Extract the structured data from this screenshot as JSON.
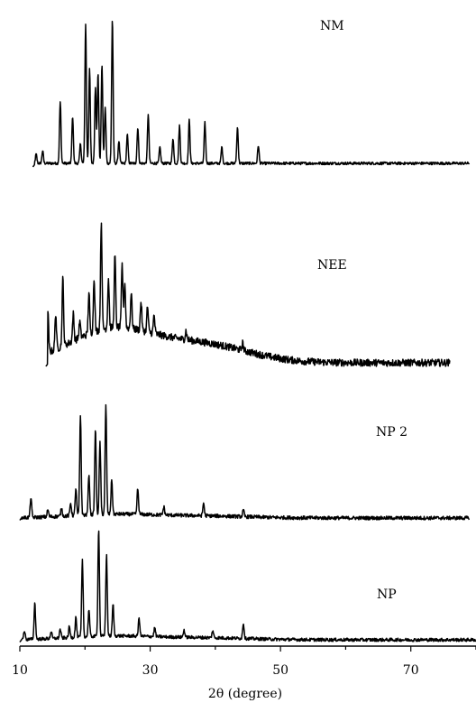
{
  "chart_data": {
    "type": "line",
    "title": "",
    "xlabel": "2θ (degree)",
    "ylabel": "",
    "xlim": [
      10,
      80
    ],
    "x_ticks": [
      10,
      30,
      50,
      70
    ],
    "grid": false,
    "legend": "none",
    "stacked_offset": true,
    "series": [
      {
        "name": "NM",
        "x_range": [
          12,
          79
        ],
        "baseline": 8,
        "noise": 1.5,
        "hump": 0,
        "peaks": [
          [
            12.5,
            10
          ],
          [
            13.5,
            14
          ],
          [
            16.2,
            68
          ],
          [
            18.1,
            52
          ],
          [
            19.3,
            22
          ],
          [
            20.1,
            155
          ],
          [
            20.7,
            105
          ],
          [
            21.6,
            85
          ],
          [
            22.0,
            100
          ],
          [
            22.6,
            110
          ],
          [
            23.1,
            62
          ],
          [
            24.2,
            160
          ],
          [
            25.2,
            25
          ],
          [
            26.5,
            32
          ],
          [
            28.1,
            40
          ],
          [
            29.7,
            55
          ],
          [
            31.5,
            18
          ],
          [
            33.5,
            28
          ],
          [
            34.5,
            42
          ],
          [
            36.0,
            48
          ],
          [
            38.4,
            45
          ],
          [
            41.0,
            18
          ],
          [
            43.4,
            40
          ],
          [
            46.6,
            20
          ]
        ]
      },
      {
        "name": "NEE",
        "x_range": [
          14,
          76
        ],
        "baseline": 8,
        "noise": 4,
        "hump": 36,
        "peaks": [
          [
            14.3,
            45
          ],
          [
            15.5,
            40
          ],
          [
            16.6,
            75
          ],
          [
            18.2,
            30
          ],
          [
            19.2,
            18
          ],
          [
            20.6,
            45
          ],
          [
            21.4,
            60
          ],
          [
            22.5,
            120
          ],
          [
            23.6,
            55
          ],
          [
            24.6,
            80
          ],
          [
            25.7,
            70
          ],
          [
            26.1,
            50
          ],
          [
            27.1,
            40
          ],
          [
            28.6,
            32
          ],
          [
            29.6,
            28
          ],
          [
            30.6,
            20
          ],
          [
            35.5,
            10
          ],
          [
            44.2,
            8
          ]
        ]
      },
      {
        "name": "NP 2",
        "x_range": [
          10,
          79
        ],
        "baseline": 5,
        "noise": 2,
        "hump": 4,
        "peaks": [
          [
            11.7,
            22
          ],
          [
            14.3,
            8
          ],
          [
            16.4,
            9
          ],
          [
            17.8,
            14
          ],
          [
            18.6,
            30
          ],
          [
            19.3,
            110
          ],
          [
            20.6,
            45
          ],
          [
            21.6,
            95
          ],
          [
            22.3,
            80
          ],
          [
            23.2,
            120
          ],
          [
            24.1,
            38
          ],
          [
            28.1,
            28
          ],
          [
            32.1,
            9
          ],
          [
            38.2,
            14
          ],
          [
            44.3,
            7
          ]
        ]
      },
      {
        "name": "NP",
        "x_range": [
          10,
          80
        ],
        "baseline": 5,
        "noise": 1.8,
        "hump": 4,
        "peaks": [
          [
            10.7,
            10
          ],
          [
            12.3,
            40
          ],
          [
            14.8,
            8
          ],
          [
            16.2,
            10
          ],
          [
            17.6,
            12
          ],
          [
            18.6,
            22
          ],
          [
            19.6,
            85
          ],
          [
            20.6,
            30
          ],
          [
            22.1,
            120
          ],
          [
            23.3,
            90
          ],
          [
            24.3,
            35
          ],
          [
            28.3,
            20
          ],
          [
            30.7,
            10
          ],
          [
            35.2,
            8
          ],
          [
            39.6,
            8
          ],
          [
            44.3,
            17
          ]
        ]
      }
    ]
  }
}
